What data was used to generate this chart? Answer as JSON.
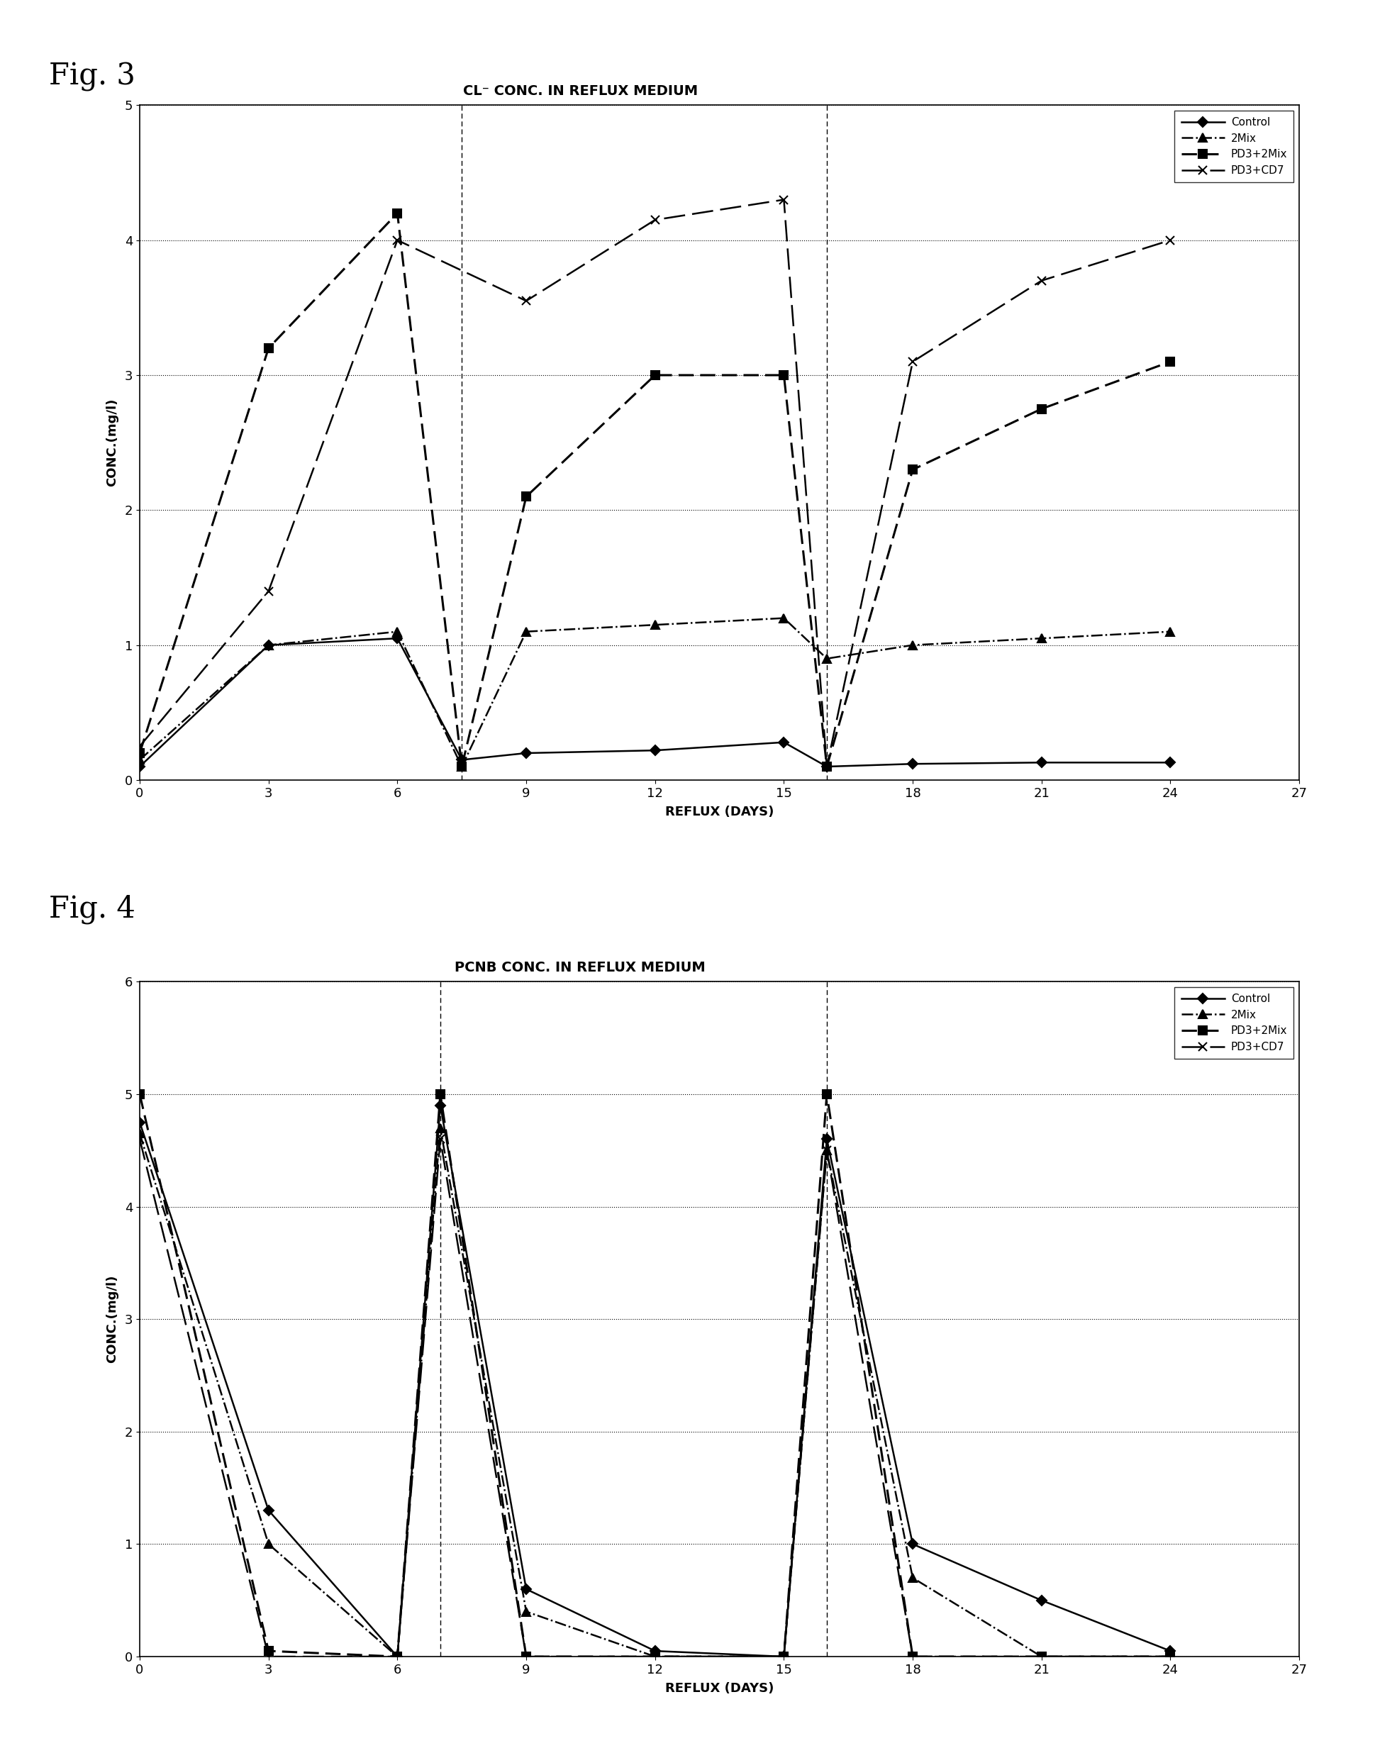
{
  "fig3": {
    "title": "CL⁻ CONC. IN REFLUX MEDIUM",
    "xlabel": "REFLUX (DAYS)",
    "ylabel": "CONC.(mg/l)",
    "xlim": [
      0,
      27
    ],
    "ylim": [
      0,
      5
    ],
    "xticks": [
      0,
      3,
      6,
      9,
      12,
      15,
      18,
      21,
      24,
      27
    ],
    "yticks": [
      0,
      1,
      2,
      3,
      4,
      5
    ],
    "Control": {
      "x": [
        0,
        3,
        6,
        7.5,
        9,
        12,
        15,
        16,
        18,
        21,
        24
      ],
      "y": [
        0.1,
        1.0,
        1.05,
        0.15,
        0.2,
        0.22,
        0.28,
        0.1,
        0.12,
        0.13,
        0.13
      ]
    },
    "2Mix": {
      "x": [
        0,
        3,
        6,
        7.5,
        9,
        12,
        15,
        16,
        18,
        21,
        24
      ],
      "y": [
        0.15,
        1.0,
        1.1,
        0.1,
        1.1,
        1.15,
        1.2,
        0.9,
        1.0,
        1.05,
        1.1
      ]
    },
    "PD3+2Mix": {
      "x": [
        0,
        3,
        6,
        7.5,
        9,
        12,
        15,
        16,
        18,
        21,
        24
      ],
      "y": [
        0.2,
        3.2,
        4.2,
        0.1,
        2.1,
        3.0,
        3.0,
        0.1,
        2.3,
        2.75,
        3.1
      ]
    },
    "PD3+CD7": {
      "x": [
        0,
        3,
        6,
        9,
        12,
        15,
        16,
        18,
        21,
        24
      ],
      "y": [
        0.25,
        1.4,
        4.0,
        3.55,
        4.15,
        4.3,
        0.1,
        3.1,
        3.7,
        4.0
      ]
    },
    "vlines": [
      7.5,
      16
    ]
  },
  "fig4": {
    "title": "PCNB CONC. IN REFLUX MEDIUM",
    "xlabel": "REFLUX (DAYS)",
    "ylabel": "CONC.(mg/l)",
    "xlim": [
      0,
      27
    ],
    "ylim": [
      0,
      6
    ],
    "xticks": [
      0,
      3,
      6,
      9,
      12,
      15,
      18,
      21,
      24,
      27
    ],
    "yticks": [
      0,
      1,
      2,
      3,
      4,
      5,
      6
    ],
    "Control": {
      "x": [
        0,
        3,
        6,
        7,
        9,
        12,
        15,
        16,
        18,
        21,
        24
      ],
      "y": [
        4.75,
        1.3,
        0.0,
        4.9,
        0.6,
        0.05,
        0.0,
        4.6,
        1.0,
        0.5,
        0.05
      ]
    },
    "2Mix": {
      "x": [
        0,
        3,
        6,
        7,
        9,
        12,
        15,
        16,
        18,
        21,
        24
      ],
      "y": [
        4.65,
        1.0,
        0.0,
        4.7,
        0.4,
        0.0,
        0.0,
        4.5,
        0.7,
        0.0,
        0.0
      ]
    },
    "PD3+2Mix": {
      "x": [
        0,
        3,
        6,
        7,
        9,
        12,
        15,
        16,
        18,
        21,
        24
      ],
      "y": [
        5.0,
        0.05,
        0.0,
        5.0,
        0.0,
        0.0,
        0.0,
        5.0,
        0.0,
        0.0,
        0.0
      ]
    },
    "PD3+CD7": {
      "x": [
        0,
        3,
        6,
        7,
        9,
        12,
        15,
        16,
        18,
        21,
        24
      ],
      "y": [
        4.6,
        0.0,
        0.0,
        4.6,
        0.0,
        0.0,
        0.0,
        4.5,
        0.0,
        0.0,
        0.0
      ]
    },
    "vlines": [
      7,
      16
    ]
  },
  "fig3_label": "Fig. 3",
  "fig4_label": "Fig. 4",
  "legend_labels": [
    "Control",
    "2Mix",
    "PD3+2Mix",
    "PD3+CD7"
  ],
  "background_color": "#ffffff"
}
